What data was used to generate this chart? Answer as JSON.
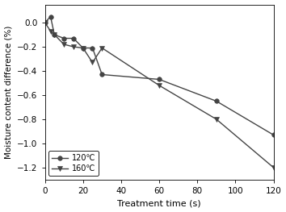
{
  "line120_x": [
    0,
    3,
    5,
    10,
    15,
    20,
    25,
    30,
    60,
    90,
    120
  ],
  "line120_y": [
    0.0,
    0.05,
    -0.1,
    -0.13,
    -0.13,
    -0.21,
    -0.21,
    -0.43,
    -0.47,
    -0.65,
    -0.93
  ],
  "line160_x": [
    0,
    3,
    5,
    10,
    15,
    20,
    25,
    30,
    60,
    90,
    120
  ],
  "line160_y": [
    0.0,
    -0.07,
    -0.1,
    -0.18,
    -0.2,
    -0.21,
    -0.33,
    -0.21,
    -0.52,
    -0.8,
    -1.2
  ],
  "xlabel": "Treatment time (s)",
  "ylabel": "Moisture content difference (%)",
  "legend_120": "120℃",
  "legend_160": "160℃",
  "xlim": [
    0,
    120
  ],
  "ylim": [
    -1.3,
    0.15
  ],
  "xticks": [
    0,
    20,
    40,
    60,
    80,
    100,
    120
  ],
  "yticks": [
    0.0,
    -0.2,
    -0.4,
    -0.6,
    -0.8,
    -1.0,
    -1.2
  ],
  "line_color": "#444444",
  "marker_circle": "o",
  "marker_triangle": "v",
  "markersize": 4,
  "linewidth": 1.0,
  "xlabel_fontsize": 8,
  "ylabel_fontsize": 7.5,
  "tick_fontsize": 7.5,
  "legend_fontsize": 7
}
